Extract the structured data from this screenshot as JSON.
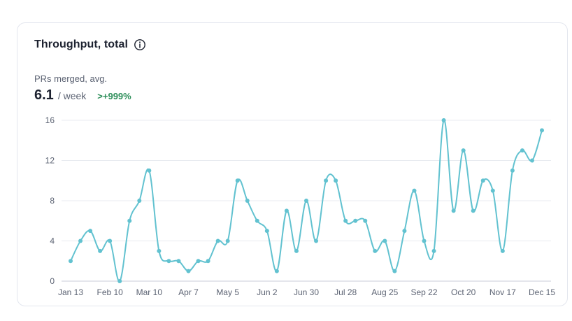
{
  "card": {
    "title": "Throughput, total",
    "info_icon": "info-circle-icon",
    "metric_label": "PRs merged, avg.",
    "metric_value": "6.1",
    "metric_unit": "/ week",
    "metric_delta": ">+999%",
    "delta_color": "#2f8f5b"
  },
  "chart_data": {
    "type": "line",
    "series_color": "#62c2d0",
    "grid": true,
    "ylim": [
      0,
      16
    ],
    "yticks": [
      "0",
      "4",
      "8",
      "12",
      "16"
    ],
    "xtick_labels": [
      "Jan 13",
      "Feb 10",
      "Mar 10",
      "Apr 7",
      "May 5",
      "Jun 2",
      "Jun 30",
      "Jul 28",
      "Aug 25",
      "Sep 22",
      "Oct 20",
      "Nov 17",
      "Dec 15"
    ],
    "values": [
      2,
      4,
      5,
      3,
      4,
      0,
      6,
      8,
      11,
      3,
      2,
      2,
      1,
      2,
      2,
      4,
      4,
      10,
      8,
      6,
      5,
      1,
      7,
      3,
      8,
      4,
      10,
      10,
      6,
      6,
      6,
      3,
      4,
      1,
      5,
      9,
      4,
      3,
      16,
      7,
      13,
      7,
      10,
      9,
      3,
      11,
      13,
      12,
      15
    ]
  }
}
